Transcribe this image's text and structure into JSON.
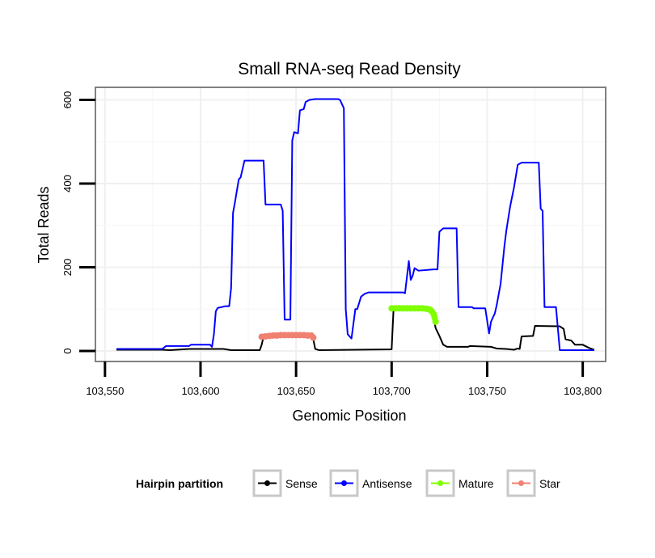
{
  "chart_data": {
    "type": "line",
    "title": "Small RNA-seq Read Density",
    "xlabel": "Genomic Position",
    "ylabel": "Total Reads",
    "xlim": [
      103545,
      103812
    ],
    "ylim": [
      -25,
      630
    ],
    "x_ticks": [
      103550,
      103600,
      103650,
      103700,
      103750,
      103800
    ],
    "x_tick_labels": [
      "103,550",
      "103,600",
      "103,650",
      "103,700",
      "103,750",
      "103,800"
    ],
    "y_ticks": [
      0,
      200,
      400,
      600
    ],
    "y_tick_labels": [
      "0",
      "200",
      "400",
      "600"
    ],
    "grid": true,
    "legend": {
      "title": "Hairpin partition",
      "position": "bottom",
      "items": [
        "Sense",
        "Antisense",
        "Mature",
        "Star"
      ]
    },
    "series": [
      {
        "name": "Sense",
        "color": "#000000",
        "style": "line",
        "points": [
          [
            103556,
            3
          ],
          [
            103580,
            3
          ],
          [
            103584,
            2
          ],
          [
            103594,
            5
          ],
          [
            103612,
            5
          ],
          [
            103616,
            2
          ],
          [
            103631,
            2
          ],
          [
            103632,
            15
          ],
          [
            103633,
            35
          ],
          [
            103650,
            37
          ],
          [
            103658,
            36
          ],
          [
            103659,
            28
          ],
          [
            103660,
            5
          ],
          [
            103662,
            2
          ],
          [
            103700,
            4
          ],
          [
            103701,
            100
          ],
          [
            103719,
            101
          ],
          [
            103721,
            95
          ],
          [
            103722,
            80
          ],
          [
            103723,
            55
          ],
          [
            103725,
            36
          ],
          [
            103727,
            15
          ],
          [
            103729,
            10
          ],
          [
            103740,
            10
          ],
          [
            103741,
            12
          ],
          [
            103752,
            10
          ],
          [
            103755,
            6
          ],
          [
            103760,
            5
          ],
          [
            103764,
            3
          ],
          [
            103766,
            6
          ],
          [
            103767,
            5
          ],
          [
            103768,
            35
          ],
          [
            103774,
            36
          ],
          [
            103775,
            60
          ],
          [
            103788,
            59
          ],
          [
            103790,
            53
          ],
          [
            103791,
            28
          ],
          [
            103794,
            25
          ],
          [
            103796,
            15
          ],
          [
            103800,
            15
          ],
          [
            103803,
            8
          ],
          [
            103806,
            3
          ]
        ]
      },
      {
        "name": "Antisense",
        "color": "#0000ff",
        "style": "line",
        "points": [
          [
            103556,
            5
          ],
          [
            103580,
            5
          ],
          [
            103582,
            12
          ],
          [
            103594,
            12
          ],
          [
            103595,
            15
          ],
          [
            103605,
            15
          ],
          [
            103606,
            10
          ],
          [
            103607,
            40
          ],
          [
            103608,
            95
          ],
          [
            103609,
            103
          ],
          [
            103613,
            107
          ],
          [
            103615,
            107
          ],
          [
            103616,
            150
          ],
          [
            103617,
            330
          ],
          [
            103618,
            355
          ],
          [
            103620,
            410
          ],
          [
            103621,
            415
          ],
          [
            103623,
            455
          ],
          [
            103633,
            455
          ],
          [
            103634,
            350
          ],
          [
            103642,
            350
          ],
          [
            103643,
            335
          ],
          [
            103644,
            75
          ],
          [
            103647,
            75
          ],
          [
            103648,
            503
          ],
          [
            103649,
            523
          ],
          [
            103651,
            520
          ],
          [
            103652,
            575
          ],
          [
            103654,
            578
          ],
          [
            103655,
            595
          ],
          [
            103657,
            600
          ],
          [
            103660,
            602
          ],
          [
            103672,
            602
          ],
          [
            103673,
            600
          ],
          [
            103675,
            580
          ],
          [
            103676,
            100
          ],
          [
            103677,
            40
          ],
          [
            103678,
            35
          ],
          [
            103679,
            30
          ],
          [
            103681,
            100
          ],
          [
            103682,
            100
          ],
          [
            103684,
            130
          ],
          [
            103686,
            137
          ],
          [
            103688,
            140
          ],
          [
            103706,
            140
          ],
          [
            103707,
            138
          ],
          [
            103709,
            215
          ],
          [
            103710,
            170
          ],
          [
            103711,
            180
          ],
          [
            103712,
            198
          ],
          [
            103714,
            192
          ],
          [
            103722,
            195
          ],
          [
            103724,
            195
          ],
          [
            103725,
            285
          ],
          [
            103727,
            293
          ],
          [
            103734,
            293
          ],
          [
            103735,
            105
          ],
          [
            103742,
            105
          ],
          [
            103743,
            102
          ],
          [
            103749,
            102
          ],
          [
            103751,
            42
          ],
          [
            103752,
            70
          ],
          [
            103754,
            90
          ],
          [
            103755,
            110
          ],
          [
            103757,
            160
          ],
          [
            103759,
            250
          ],
          [
            103760,
            287
          ],
          [
            103762,
            345
          ],
          [
            103764,
            390
          ],
          [
            103766,
            445
          ],
          [
            103768,
            450
          ],
          [
            103777,
            450
          ],
          [
            103778,
            340
          ],
          [
            103779,
            335
          ],
          [
            103780,
            105
          ],
          [
            103786,
            105
          ],
          [
            103788,
            2
          ],
          [
            103806,
            2
          ]
        ]
      },
      {
        "name": "Mature",
        "color": "#7fff00",
        "style": "points",
        "points": [
          [
            103700,
            102
          ],
          [
            103702,
            102
          ],
          [
            103704,
            102
          ],
          [
            103706,
            102
          ],
          [
            103708,
            102
          ],
          [
            103710,
            102
          ],
          [
            103712,
            102
          ],
          [
            103714,
            102
          ],
          [
            103716,
            102
          ],
          [
            103718,
            101
          ],
          [
            103719,
            100
          ],
          [
            103720,
            99
          ],
          [
            103721,
            95
          ],
          [
            103722,
            88
          ],
          [
            103722.5,
            80
          ],
          [
            103723,
            70
          ]
        ]
      },
      {
        "name": "Star",
        "color": "#f08070",
        "style": "points",
        "points": [
          [
            103632,
            34
          ],
          [
            103634,
            35
          ],
          [
            103636,
            36
          ],
          [
            103638,
            37
          ],
          [
            103640,
            37
          ],
          [
            103642,
            38
          ],
          [
            103644,
            38
          ],
          [
            103646,
            38
          ],
          [
            103648,
            38
          ],
          [
            103650,
            38
          ],
          [
            103652,
            38
          ],
          [
            103654,
            38
          ],
          [
            103656,
            37
          ],
          [
            103658,
            37
          ],
          [
            103659,
            32
          ]
        ]
      }
    ]
  }
}
